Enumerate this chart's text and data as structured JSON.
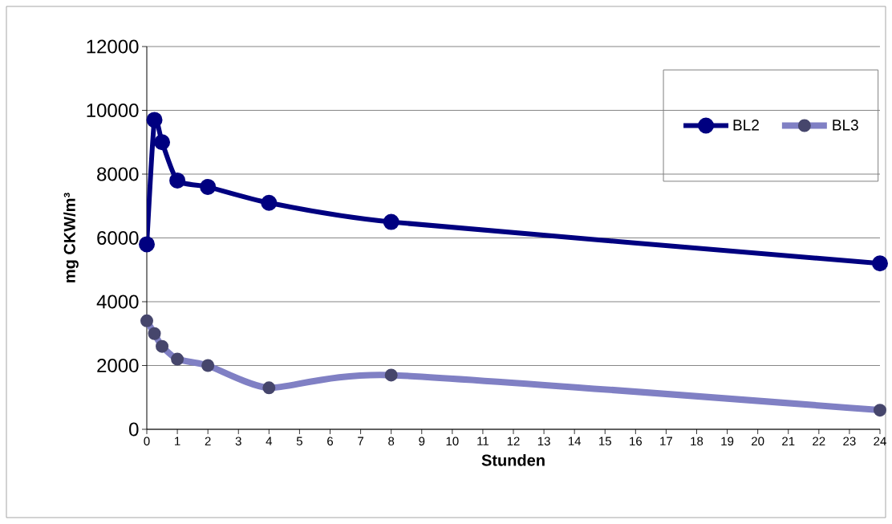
{
  "chart_data": {
    "type": "line",
    "xlabel": "Stunden",
    "ylabel": "mg CKW/m³",
    "x": [
      0,
      0.25,
      0.5,
      1,
      2,
      4,
      8,
      24
    ],
    "series": [
      {
        "name": "BL2",
        "color": "#000080",
        "values": [
          5800,
          9700,
          9000,
          7800,
          7600,
          7100,
          6500,
          5200
        ]
      },
      {
        "name": "BL3",
        "color": "#8080c4",
        "values": [
          3400,
          3000,
          2600,
          2200,
          2000,
          1300,
          1700,
          600
        ]
      }
    ],
    "xlim": [
      0,
      24
    ],
    "xticks": [
      0,
      1,
      2,
      3,
      4,
      5,
      6,
      7,
      8,
      9,
      10,
      11,
      12,
      13,
      14,
      15,
      16,
      17,
      18,
      19,
      20,
      21,
      22,
      23,
      24
    ],
    "ylim": [
      0,
      12000
    ],
    "yticks": [
      0,
      2000,
      4000,
      6000,
      8000,
      10000,
      12000
    ],
    "grid": "y",
    "legend": "top right",
    "marker": "circle",
    "line_style": "solid"
  }
}
